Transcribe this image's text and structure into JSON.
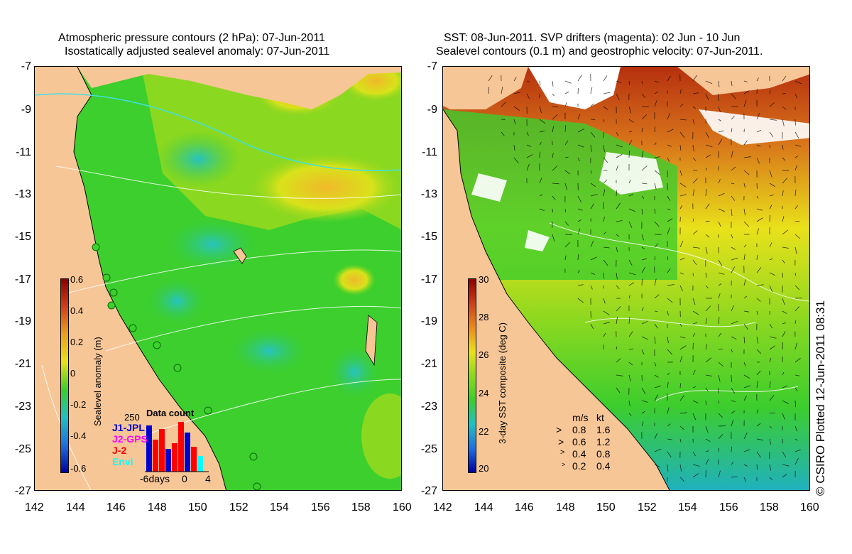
{
  "left_panel": {
    "title_line1": "Atmospheric pressure contours (2 hPa): 07-Jun-2011",
    "title_line2": "Isostatically adjusted sealevel anomaly: 07-Jun-2011",
    "colorbar": {
      "label": "Sealevel anomaly (m)",
      "ticks": [
        "0.6",
        "0.4",
        "0.2",
        "0",
        "-0.2",
        "-0.4",
        "-0.6"
      ]
    },
    "data_count": {
      "title": "Data count",
      "max": "250",
      "series": [
        "J1-JPL",
        "J2-GPS",
        "J-2",
        "Envi"
      ],
      "series_colors": [
        "#0000d0",
        "#ff00ff",
        "#ff0000",
        "#00ffff"
      ],
      "x_ticks": [
        "-6days",
        "0",
        "4"
      ]
    }
  },
  "right_panel": {
    "title_line1": "SST: 08-Jun-2011. SVP drifters (magenta): 02 Jun - 10 Jun",
    "title_line2": "Sealevel contours (0.1 m) and geostrophic velocity: 07-Jun-2011.",
    "colorbar": {
      "label": "3-day SST composite (deg C)",
      "ticks": [
        "30",
        "28",
        "26",
        "24",
        "22",
        "20"
      ]
    },
    "velocity_legend": {
      "header_ms": "m/s",
      "header_kt": "kt",
      "rows": [
        {
          "ms": "0.8",
          "kt": "1.6"
        },
        {
          "ms": "0.6",
          "kt": "1.2"
        },
        {
          "ms": "0.4",
          "kt": "0.8"
        },
        {
          "ms": "0.2",
          "kt": "0.4"
        }
      ]
    },
    "copyright": "© CSIRO Plotted 12-Jun-2011 08:31"
  },
  "axes": {
    "x_ticks": [
      "142",
      "144",
      "146",
      "148",
      "150",
      "152",
      "154",
      "156",
      "158",
      "160"
    ],
    "y_ticks": [
      "-7",
      "-9",
      "-11",
      "-13",
      "-15",
      "-17",
      "-19",
      "-21",
      "-23",
      "-25",
      "-27"
    ]
  },
  "colors": {
    "land": "#f7c697",
    "sla_green": "#3ccf2d",
    "sla_cyan": "#2fc7a0",
    "sla_yellow": "#d8e21a",
    "sst_green": "#3ccd2d",
    "sst_yellow": "#e9e11a",
    "sst_orange": "#d8751a",
    "sst_red": "#b6300f"
  }
}
